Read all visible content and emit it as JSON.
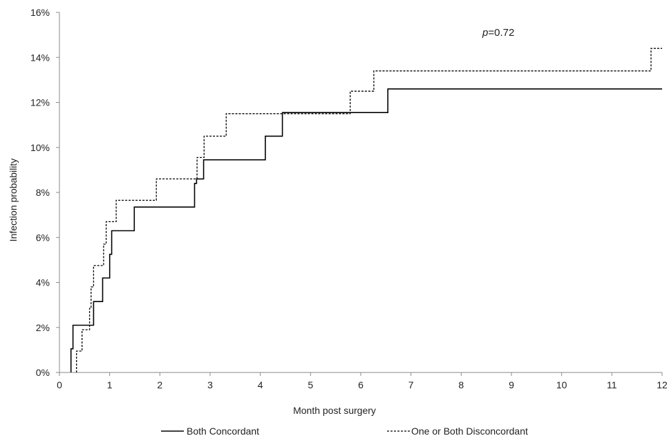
{
  "chart_data": {
    "type": "line",
    "subtype": "step",
    "title": "",
    "xlabel": "Month post surgery",
    "ylabel": "Infection probability",
    "xlim": [
      0,
      12
    ],
    "ylim": [
      0,
      16
    ],
    "x_ticks": [
      "0",
      "1",
      "2",
      "3",
      "4",
      "5",
      "6",
      "7",
      "8",
      "9",
      "10",
      "11",
      "12"
    ],
    "y_ticks": [
      "0%",
      "2%",
      "4%",
      "6%",
      "8%",
      "10%",
      "12%",
      "14%",
      "16%"
    ],
    "grid": false,
    "legend_position": "bottom",
    "annotation": {
      "p_symbol": "p",
      "p_value": "=0.72"
    },
    "series": [
      {
        "name": "Both Concordant",
        "line_style": "solid",
        "color": "#000000",
        "x": [
          0.23,
          0.23,
          0.27,
          0.27,
          0.68,
          0.68,
          0.86,
          0.86,
          1.0,
          1.0,
          1.04,
          1.04,
          1.49,
          1.49,
          2.69,
          2.69,
          2.73,
          2.73,
          2.87,
          2.87,
          4.1,
          4.1,
          4.44,
          4.44,
          6.54,
          6.54,
          12.0
        ],
        "y": [
          0,
          1.05,
          1.05,
          2.1,
          2.1,
          3.15,
          3.15,
          4.2,
          4.2,
          5.25,
          5.25,
          6.3,
          6.3,
          7.35,
          7.35,
          8.4,
          8.4,
          8.6,
          8.6,
          9.45,
          9.45,
          10.5,
          10.5,
          11.55,
          11.55,
          12.6,
          12.6
        ]
      },
      {
        "name": "One or Both Disconcordant",
        "line_style": "dashed",
        "color": "#000000",
        "x": [
          0.34,
          0.34,
          0.45,
          0.45,
          0.6,
          0.6,
          0.63,
          0.63,
          0.68,
          0.68,
          0.88,
          0.88,
          0.93,
          0.93,
          1.13,
          1.13,
          1.93,
          1.93,
          2.74,
          2.74,
          2.88,
          2.88,
          3.32,
          3.32,
          5.79,
          5.79,
          6.26,
          6.26,
          11.78,
          11.78,
          12.0
        ],
        "y": [
          0,
          0.95,
          0.95,
          1.9,
          1.9,
          2.85,
          2.85,
          3.8,
          3.8,
          4.75,
          4.75,
          5.7,
          5.7,
          6.7,
          6.7,
          7.65,
          7.65,
          8.6,
          8.6,
          9.55,
          9.55,
          10.5,
          10.5,
          11.5,
          11.5,
          12.5,
          12.5,
          13.4,
          13.4,
          14.4,
          14.4
        ]
      }
    ]
  }
}
